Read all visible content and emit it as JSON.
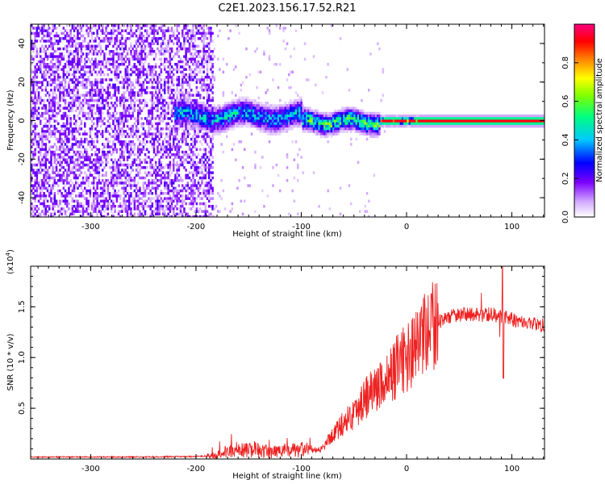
{
  "title": "C2E1.2023.156.17.52.R21",
  "chart_data": [
    {
      "type": "heatmap",
      "title": "C2E1.2023.156.17.52.R21",
      "xlabel": "Height of straight line (km)",
      "ylabel": "Frequency (Hz)",
      "xlim": [
        -357,
        131
      ],
      "ylim": [
        -50,
        50
      ],
      "x_ticks": [
        -300,
        -200,
        -100,
        0,
        100
      ],
      "x_tick_labels": [
        "-300",
        "-200",
        "-100",
        "0",
        "100"
      ],
      "y_ticks": [
        -40,
        -20,
        0,
        20,
        40
      ],
      "y_tick_labels": [
        "-40",
        "-20",
        "0",
        "20",
        "40"
      ],
      "colorbar": {
        "label": "Normalized spectral amplitude",
        "range": [
          0.0,
          1.0
        ],
        "ticks": [
          0.0,
          0.2,
          0.4,
          0.6,
          0.8
        ],
        "tick_labels": [
          "0.0",
          "0.2",
          "0.4",
          "0.6",
          "0.8"
        ],
        "colormap": [
          "#ffffff",
          "#c896ff",
          "#7b00ff",
          "#0000ff",
          "#00c8ff",
          "#00ff80",
          "#80ff00",
          "#ffff00",
          "#ff8000",
          "#ff0000",
          "#ff0080"
        ]
      },
      "regions": [
        {
          "x_range": [
            -357,
            -185
          ],
          "freq_range": [
            -50,
            50
          ],
          "amplitude": 0.1,
          "desc": "broadband noise"
        },
        {
          "x_range": [
            -220,
            -100
          ],
          "freq_center": 3,
          "freq_halfwidth": 7,
          "amplitude": 0.45
        },
        {
          "x_range": [
            -100,
            -25
          ],
          "freq_center": 0,
          "freq_halfwidth": 5,
          "amplitude": 0.55
        },
        {
          "x_range": [
            -25,
            131
          ],
          "freq_center": 0,
          "freq_halfwidth": 1.5,
          "amplitude": 1.0
        }
      ]
    },
    {
      "type": "line",
      "xlabel": "Height of straight line (km)",
      "ylabel": "SNR (10 * v/v)",
      "y_multiplier_label": "(x10",
      "y_multiplier_exp": "4",
      "y_multiplier_close": ")",
      "xlim": [
        -357,
        131
      ],
      "ylim": [
        0,
        19000
      ],
      "x_ticks": [
        -300,
        -200,
        -100,
        0,
        100
      ],
      "x_tick_labels": [
        "-300",
        "-200",
        "-100",
        "0",
        "100"
      ],
      "y_ticks": [
        5000,
        10000,
        15000
      ],
      "y_tick_labels": [
        "0.5",
        "1.0",
        "1.5"
      ],
      "color": "#ee2222",
      "series": [
        {
          "name": "SNR",
          "x": [
            -357,
            -300,
            -250,
            -200,
            -185,
            -170,
            -150,
            -130,
            -110,
            -100,
            -90,
            -80,
            -70,
            -60,
            -50,
            -40,
            -30,
            -20,
            -10,
            0,
            10,
            20,
            30,
            40,
            50,
            60,
            70,
            80,
            90,
            100,
            110,
            120,
            131
          ],
          "y": [
            200,
            200,
            200,
            250,
            300,
            700,
            900,
            700,
            800,
            900,
            800,
            1000,
            2500,
            3500,
            4500,
            6000,
            7000,
            7500,
            9000,
            10000,
            11000,
            12500,
            13500,
            14000,
            14200,
            14300,
            14100,
            14300,
            14000,
            13800,
            13500,
            13300,
            13200
          ]
        }
      ]
    }
  ]
}
